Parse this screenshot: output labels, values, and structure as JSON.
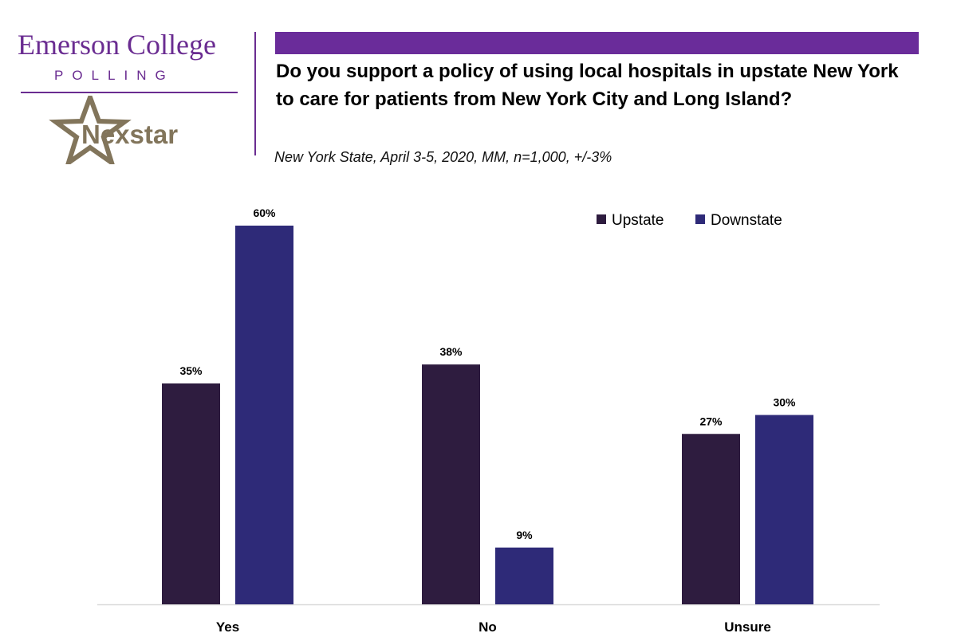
{
  "header": {
    "logo_emerson": "Emerson College",
    "logo_polling": "POLLING",
    "logo_nexstar": "Nexstar"
  },
  "chart_data": {
    "type": "bar",
    "title": "Do you support a policy of using local hospitals in upstate New York to care for patients from New York City and Long Island?",
    "subtitle": "New York State, April 3-5, 2020, MM, n=1,000, +/-3%",
    "categories": [
      "Yes",
      "No",
      "Unsure"
    ],
    "series": [
      {
        "name": "Upstate",
        "values": [
          35,
          38,
          27
        ],
        "labels": [
          "35%",
          "38%",
          "27%"
        ],
        "color": "#2e1c3f"
      },
      {
        "name": "Downstate",
        "values": [
          60,
          9,
          30
        ],
        "labels": [
          "60%",
          "9%",
          "30%"
        ],
        "color": "#2e2a78"
      }
    ],
    "xlabel": "",
    "ylabel": "",
    "ylim": [
      0,
      60
    ],
    "grid": false,
    "legend": "top-right"
  },
  "colors": {
    "brand_purple": "#6a2c91",
    "nexstar_gold": "#82755b",
    "axis": "#d9d9d9"
  }
}
